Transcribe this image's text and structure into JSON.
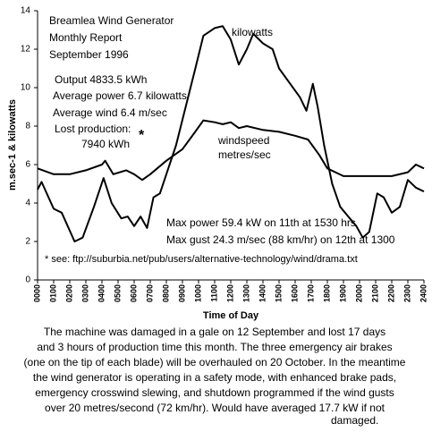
{
  "chart_data": {
    "type": "line",
    "annotations": [
      "Breamlea Wind Generator",
      "Monthly Report",
      "September 1996",
      "Output 4833.5 kWh",
      "Average power 6.7 kilowatts",
      "Average wind 6.4 m/sec",
      "Lost production:",
      "7940 kWh",
      "*",
      "Max power 59.4 kW on 11th at 1530 hrs",
      "Max gust 24.3 m/sec (88 km/hr) on 12th at 1300",
      "* see: ftp://suburbia.net/pub/users/alternative-technology/wind/drama.txt"
    ],
    "y_label": "m.sec-1 & kilowatts",
    "x_label": "Time of Day",
    "xlim": [
      0,
      24
    ],
    "xticks": [
      {
        "value": 0,
        "label": "0000"
      },
      {
        "value": 1,
        "label": "0100"
      },
      {
        "value": 2,
        "label": "0200"
      },
      {
        "value": 3,
        "label": "0300"
      },
      {
        "value": 4,
        "label": "0400"
      },
      {
        "value": 5,
        "label": "0500"
      },
      {
        "value": 6,
        "label": "0600"
      },
      {
        "value": 7,
        "label": "0700"
      },
      {
        "value": 8,
        "label": "0800"
      },
      {
        "value": 9,
        "label": "0900"
      },
      {
        "value": 10,
        "label": "1000"
      },
      {
        "value": 11,
        "label": "1100"
      },
      {
        "value": 12,
        "label": "1200"
      },
      {
        "value": 13,
        "label": "1300"
      },
      {
        "value": 14,
        "label": "1400"
      },
      {
        "value": 15,
        "label": "1500"
      },
      {
        "value": 16,
        "label": "1600"
      },
      {
        "value": 17,
        "label": "1700"
      },
      {
        "value": 18,
        "label": "1800"
      },
      {
        "value": 19,
        "label": "1900"
      },
      {
        "value": 20,
        "label": "2000"
      },
      {
        "value": 21,
        "label": "2100"
      },
      {
        "value": 22,
        "label": "2200"
      },
      {
        "value": 23,
        "label": "2300"
      },
      {
        "value": 24,
        "label": "2400"
      }
    ],
    "ylim": [
      0,
      14
    ],
    "yticks": [
      0,
      2,
      4,
      6,
      8,
      10,
      12,
      14
    ],
    "grid": false,
    "series": [
      {
        "label_lines": [
          "kilowatts"
        ],
        "color": "#000000",
        "x": [
          0,
          0.25,
          1,
          1.5,
          2.3,
          2.8,
          3.5,
          4.1,
          4.6,
          5.2,
          5.6,
          6,
          6.4,
          6.8,
          7.2,
          7.6,
          8,
          8.6,
          9.2,
          9.8,
          10.3,
          11,
          11.5,
          12,
          12.5,
          13,
          13.4,
          14,
          14.6,
          15,
          16.3,
          16.7,
          17.1,
          17.4,
          17.8,
          18.3,
          18.8,
          19.3,
          19.8,
          20.2,
          20.6,
          21.1,
          21.5,
          22,
          22.5,
          23,
          23.5,
          24
        ],
        "values": [
          4.7,
          5.1,
          3.7,
          3.5,
          2.0,
          2.2,
          3.8,
          5.3,
          4.0,
          3.2,
          3.3,
          2.8,
          3.3,
          2.7,
          4.3,
          4.5,
          5.5,
          7.0,
          9.0,
          11.0,
          12.7,
          13.1,
          13.2,
          12.5,
          11.2,
          12.0,
          12.8,
          12.3,
          12.0,
          11.0,
          9.5,
          8.8,
          10.2,
          9.0,
          7.0,
          5.0,
          3.8,
          3.3,
          2.8,
          2.2,
          2.5,
          4.5,
          4.3,
          3.5,
          3.8,
          5.2,
          4.8,
          4.6
        ]
      },
      {
        "label_lines": [
          "windspeed",
          "metres/sec"
        ],
        "color": "#000000",
        "x": [
          0,
          1,
          2,
          3,
          4,
          4.2,
          4.7,
          5.5,
          6,
          6.5,
          7,
          8,
          9,
          9.7,
          10.3,
          11,
          11.5,
          12,
          12.5,
          13,
          14,
          15,
          16,
          16.8,
          17.5,
          18,
          19,
          20,
          21,
          22,
          23,
          23.5,
          24
        ],
        "values": [
          5.8,
          5.5,
          5.5,
          5.7,
          6.0,
          6.2,
          5.5,
          5.7,
          5.5,
          5.2,
          5.5,
          6.2,
          6.8,
          7.6,
          8.3,
          8.2,
          8.1,
          8.2,
          7.9,
          8.0,
          7.8,
          7.7,
          7.5,
          7.3,
          6.5,
          5.8,
          5.4,
          5.4,
          5.4,
          5.4,
          5.6,
          6.0,
          5.8
        ]
      }
    ],
    "caption": [
      "The machine was damaged in a gale on 12 September and lost 17 days",
      "and 3 hours of production time this month. The three emergency air brakes",
      "(one on the tip of each blade) will be overhauled on 20 October. In the meantime",
      "the wind generator is operating in a safety mode, with enhanced brake pads,",
      "emergency crosswind slewing, and shutdown programmed if the wind gusts",
      "over 20 metres/second (72 km/hr). Would have averaged 17.7 kW if not",
      "damaged."
    ]
  }
}
